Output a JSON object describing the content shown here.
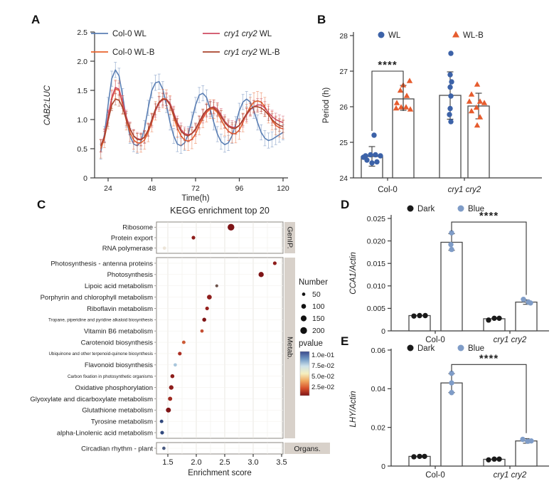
{
  "panel_labels": {
    "a": "A",
    "b": "B",
    "c": "C",
    "d": "D",
    "e": "E"
  },
  "chart_data": [
    {
      "panel": "A",
      "type": "line",
      "ylabel": "CAB2:LUC",
      "xlabel": "Time(h)",
      "ylim": [
        0,
        2.5
      ],
      "ytick_vals": [
        0,
        0.5,
        1.0,
        1.5,
        2.0,
        2.5
      ],
      "ytick_labels": [
        "0",
        "0.5",
        "1.0",
        "1.5",
        "2.0",
        "2.5"
      ],
      "xticks": [
        24,
        48,
        72,
        96,
        120
      ],
      "x_start": 20,
      "x_step": 2,
      "series": [
        {
          "name_italic": "",
          "name_rest": "Col-0 WL",
          "color": "#5b7fb4",
          "err": 0.13,
          "y": [
            0.45,
            0.75,
            1.25,
            1.7,
            1.85,
            1.75,
            1.4,
            1.0,
            0.72,
            0.58,
            0.55,
            0.62,
            0.85,
            1.2,
            1.5,
            1.63,
            1.65,
            1.52,
            1.25,
            0.95,
            0.72,
            0.58,
            0.55,
            0.6,
            0.75,
            1.0,
            1.25,
            1.42,
            1.45,
            1.38,
            1.18,
            0.95,
            0.75,
            0.62,
            0.57,
            0.6,
            0.72,
            0.92,
            1.15,
            1.3,
            1.35,
            1.3,
            1.15,
            0.95,
            0.78,
            0.68,
            0.64,
            0.66,
            0.7,
            0.74,
            0.78
          ]
        },
        {
          "name_italic": "",
          "name_rest": "Col-0 WL-B",
          "color": "#e8622d",
          "err": 0.16,
          "y": [
            0.5,
            0.68,
            1.0,
            1.35,
            1.52,
            1.5,
            1.25,
            0.98,
            0.78,
            0.65,
            0.6,
            0.6,
            0.65,
            0.78,
            0.95,
            1.15,
            1.3,
            1.36,
            1.35,
            1.25,
            1.05,
            0.85,
            0.72,
            0.65,
            0.63,
            0.66,
            0.75,
            0.9,
            1.02,
            1.12,
            1.18,
            1.18,
            1.12,
            1.0,
            0.88,
            0.8,
            0.76,
            0.76,
            0.82,
            0.95,
            1.1,
            1.22,
            1.3,
            1.32,
            1.3,
            1.22,
            1.1,
            0.98,
            0.9,
            0.86,
            0.84
          ]
        },
        {
          "name_italic": "cry1 cry2",
          "name_rest": " WL",
          "color": "#cf4b62",
          "err": 0.11,
          "y": [
            0.55,
            0.72,
            1.05,
            1.38,
            1.55,
            1.52,
            1.3,
            1.05,
            0.85,
            0.72,
            0.67,
            0.66,
            0.7,
            0.82,
            0.98,
            1.15,
            1.28,
            1.34,
            1.35,
            1.28,
            1.12,
            0.95,
            0.83,
            0.76,
            0.74,
            0.76,
            0.82,
            0.95,
            1.05,
            1.15,
            1.2,
            1.22,
            1.18,
            1.08,
            0.97,
            0.9,
            0.87,
            0.86,
            0.9,
            0.98,
            1.08,
            1.17,
            1.22,
            1.25,
            1.25,
            1.2,
            1.12,
            1.05,
            1.0,
            0.97,
            0.95
          ]
        },
        {
          "name_italic": "cry1 cry2",
          "name_rest": " WL-B",
          "color": "#a8432c",
          "err": 0.1,
          "y": [
            0.55,
            0.7,
            0.98,
            1.25,
            1.35,
            1.33,
            1.2,
            1.0,
            0.84,
            0.72,
            0.66,
            0.65,
            0.7,
            0.82,
            1.0,
            1.18,
            1.3,
            1.35,
            1.34,
            1.25,
            1.08,
            0.92,
            0.8,
            0.74,
            0.72,
            0.76,
            0.84,
            0.96,
            1.08,
            1.16,
            1.2,
            1.2,
            1.15,
            1.05,
            0.95,
            0.88,
            0.85,
            0.85,
            0.9,
            1.0,
            1.1,
            1.18,
            1.22,
            1.22,
            1.2,
            1.15,
            1.08,
            1.0,
            0.94,
            0.9,
            0.88
          ]
        }
      ]
    },
    {
      "panel": "B",
      "type": "bar-scatter",
      "ylabel": "Period (h)",
      "ylabel_italic": false,
      "ylim": [
        24,
        28
      ],
      "ytick_vals": [
        24,
        25,
        26,
        27,
        28
      ],
      "ytick_labels": [
        "24",
        "25",
        "26",
        "27",
        "28"
      ],
      "categories": [
        {
          "label": "Col-0",
          "italic": false
        },
        {
          "label": "cry1 cry2",
          "italic": true
        }
      ],
      "legend": [
        {
          "label": "WL",
          "marker": "circle",
          "color": "#3c62a8"
        },
        {
          "label": "WL-B",
          "marker": "triangle",
          "color": "#e65c2e"
        }
      ],
      "bars": [
        {
          "category": "Col-0",
          "series": "WL",
          "mean": 24.6,
          "err_lo": 24.33,
          "err_hi": 24.88,
          "points": [
            [
              3,
              25.2
            ],
            [
              -9,
              24.62
            ],
            [
              -2,
              24.65
            ],
            [
              5,
              24.65
            ],
            [
              12,
              24.62
            ],
            [
              -7,
              24.5
            ],
            [
              0,
              24.42
            ],
            [
              7,
              24.45
            ],
            [
              -12,
              24.58
            ]
          ]
        },
        {
          "category": "Col-0",
          "series": "WL-B",
          "mean": 26.22,
          "err_lo": 25.9,
          "err_hi": 26.6,
          "points": [
            [
              0,
              26.6
            ],
            [
              9,
              26.72
            ],
            [
              -4,
              26.45
            ],
            [
              5,
              26.3
            ],
            [
              -9,
              26.1
            ],
            [
              -3,
              25.98
            ],
            [
              4,
              25.98
            ],
            [
              -10,
              25.95
            ],
            [
              10,
              25.92
            ]
          ]
        },
        {
          "category": "cry1 cry2",
          "series": "WL",
          "mean": 26.32,
          "err_lo": 25.65,
          "err_hi": 26.98,
          "points": [
            [
              1,
              27.5
            ],
            [
              0,
              26.9
            ],
            [
              2,
              26.7
            ],
            [
              0,
              26.55
            ],
            [
              1,
              26.3
            ],
            [
              0,
              25.95
            ],
            [
              -1,
              25.78
            ],
            [
              1,
              25.58
            ]
          ]
        },
        {
          "category": "cry1 cry2",
          "series": "WL-B",
          "mean": 26.02,
          "err_lo": 25.66,
          "err_hi": 26.38,
          "points": [
            [
              -2,
              26.62
            ],
            [
              -10,
              26.34
            ],
            [
              2,
              26.14
            ],
            [
              -13,
              26.14
            ],
            [
              8,
              26.1
            ],
            [
              -3,
              25.97
            ],
            [
              -10,
              25.87
            ],
            [
              2,
              25.7
            ],
            [
              -2,
              25.47
            ]
          ]
        }
      ],
      "significance": {
        "label": "****",
        "from_bar": 0,
        "to_bar": 1,
        "y": 27.0,
        "left_drop_to": 25.32,
        "right_drop_to": 25.88
      }
    },
    {
      "panel": "C",
      "type": "dot",
      "title": "KEGG enrichment top 20",
      "xlabel": "Enrichment score",
      "xlim": [
        1.28,
        3.56
      ],
      "xticks": [
        1.5,
        2.0,
        2.5,
        3.0,
        3.5
      ],
      "xtick_labels": [
        "1.5",
        "2.0",
        "2.5",
        "3.0",
        "3.5"
      ],
      "facets": [
        {
          "label": "GenIP.",
          "items": [
            {
              "label": "Ribosome",
              "score": 2.61,
              "number": 200,
              "color": "#7e1416"
            },
            {
              "label": "Protein export",
              "score": 1.95,
              "number": 60,
              "color": "#8e1e1c"
            },
            {
              "label": "RNA polymerase",
              "score": 1.44,
              "number": 50,
              "color": "#ece4d8"
            }
          ]
        },
        {
          "label": "Metab.",
          "items": [
            {
              "label": "Photosynthesis - antenna proteins",
              "score": 3.38,
              "number": 60,
              "color": "#8e1e1c"
            },
            {
              "label": "Photosynthesis",
              "score": 3.14,
              "number": 120,
              "color": "#7e1416"
            },
            {
              "label": "Lipoic acid metabolism",
              "score": 2.36,
              "number": 40,
              "color": "#6b5048"
            },
            {
              "label": "Porphyrin and chlorophyll metabolism",
              "score": 2.23,
              "number": 100,
              "color": "#8e1e1c"
            },
            {
              "label": "Riboflavin metabolism",
              "score": 2.19,
              "number": 60,
              "color": "#96201e"
            },
            {
              "label": "Tropane, piperidine and pyridine alkaloid biosynthesis",
              "score": 2.14,
              "number": 70,
              "color": "#7e1416",
              "small": true
            },
            {
              "label": "Vitamin B6 metabolism",
              "score": 2.1,
              "number": 50,
              "color": "#c54f33"
            },
            {
              "label": "Carotenoid biosynthesis",
              "score": 1.78,
              "number": 55,
              "color": "#cc5a35"
            },
            {
              "label": "Ubiquinone and other terpenoid-quinone biosynthesis",
              "score": 1.71,
              "number": 60,
              "color": "#ab2d22",
              "small": true
            },
            {
              "label": "Flavonoid biosynthesis",
              "score": 1.63,
              "number": 50,
              "color": "#a9c6dc"
            },
            {
              "label": "Carbon fixation in photosynthetic organisms",
              "score": 1.58,
              "number": 70,
              "color": "#8e1e1c",
              "small": true
            },
            {
              "label": "Oxidative phosphorylation",
              "score": 1.56,
              "number": 90,
              "color": "#8e1e1c"
            },
            {
              "label": "Glyoxylate and dicarboxylate metabolism",
              "score": 1.54,
              "number": 80,
              "color": "#a02a20"
            },
            {
              "label": "Glutathione metabolism",
              "score": 1.51,
              "number": 110,
              "color": "#7e1416"
            },
            {
              "label": "Tyrosine metabolism",
              "score": 1.39,
              "number": 55,
              "color": "#31497e"
            },
            {
              "label": "alpha-Linolenic acid metabolism",
              "score": 1.4,
              "number": 60,
              "color": "#31497e"
            }
          ]
        },
        {
          "label": "Organs.",
          "items": [
            {
              "label": "Circadian rhythm - plant",
              "score": 1.43,
              "number": 50,
              "color": "#4a5a80"
            }
          ]
        }
      ],
      "legend_number": {
        "title": "Number",
        "sizes": [
          50,
          100,
          150,
          200
        ]
      },
      "legend_pvalue": {
        "title": "pvalue",
        "labels": [
          "1.0e-01",
          "7.5e-02",
          "5.0e-02",
          "2.5e-02"
        ],
        "gradient": [
          "#39498c",
          "#6f97c4",
          "#cfe3ea",
          "#f5efc0",
          "#f0a860",
          "#d8512c",
          "#7e1416"
        ]
      }
    },
    {
      "panel": "D",
      "type": "bar-scatter",
      "ylabel": "CCA1/Actin",
      "ylabel_italic": true,
      "ylim": [
        0,
        0.025
      ],
      "ytick_vals": [
        0,
        0.005,
        0.01,
        0.015,
        0.02,
        0.025
      ],
      "ytick_labels": [
        "0",
        "0.005",
        "0.010",
        "0.015",
        "0.020",
        "0.025"
      ],
      "categories": [
        {
          "label": "Col-0",
          "italic": false
        },
        {
          "label": "cry1 cry2",
          "italic": true
        }
      ],
      "legend": [
        {
          "label": "Dark",
          "marker": "circle",
          "color": "#1a1a1a"
        },
        {
          "label": "Blue",
          "marker": "circle",
          "color": "#7f9cc7"
        }
      ],
      "bars": [
        {
          "category": "Col-0",
          "series": "Dark",
          "mean": 0.0034,
          "points": [
            [
              -8,
              0.0033
            ],
            [
              0,
              0.0034
            ],
            [
              8,
              0.0034
            ]
          ]
        },
        {
          "category": "Col-0",
          "series": "Blue",
          "mean": 0.0197,
          "err_lo": 0.0179,
          "err_hi": 0.0216,
          "points": [
            [
              0,
              0.0218
            ],
            [
              -1,
              0.0192
            ],
            [
              0,
              0.0181
            ]
          ]
        },
        {
          "category": "cry1 cry2",
          "series": "Dark",
          "mean": 0.0027,
          "points": [
            [
              -8,
              0.0024
            ],
            [
              0,
              0.0028
            ],
            [
              7,
              0.0028
            ]
          ]
        },
        {
          "category": "cry1 cry2",
          "series": "Blue",
          "mean": 0.0064,
          "err_lo": 0.0059,
          "err_hi": 0.0069,
          "points": [
            [
              -4,
              0.007
            ],
            [
              3,
              0.0064
            ],
            [
              6,
              0.0062
            ]
          ]
        }
      ],
      "significance": {
        "label": "****",
        "from_bar": 1,
        "to_bar": 3,
        "y": 0.0242,
        "left_drop_to": 0.0222,
        "right_drop_to": 0.008
      }
    },
    {
      "panel": "E",
      "type": "bar-scatter",
      "ylabel": "LHY/Actin",
      "ylabel_italic": true,
      "ylim": [
        0,
        0.06
      ],
      "ytick_vals": [
        0,
        0.02,
        0.04,
        0.06
      ],
      "ytick_labels": [
        "0",
        "0.02",
        "0.04",
        "0.06"
      ],
      "categories": [
        {
          "label": "Col-0",
          "italic": false
        },
        {
          "label": "cry1 cry2",
          "italic": true
        }
      ],
      "legend": [
        {
          "label": "Dark",
          "marker": "circle",
          "color": "#1a1a1a"
        },
        {
          "label": "Blue",
          "marker": "circle",
          "color": "#7f9cc7"
        }
      ],
      "bars": [
        {
          "category": "Col-0",
          "series": "Dark",
          "mean": 0.005,
          "points": [
            [
              -8,
              0.0048
            ],
            [
              0,
              0.005
            ],
            [
              7,
              0.005
            ]
          ]
        },
        {
          "category": "Col-0",
          "series": "Blue",
          "mean": 0.043,
          "err_lo": 0.038,
          "err_hi": 0.0478,
          "points": [
            [
              0,
              0.048
            ],
            [
              0,
              0.043
            ],
            [
              0,
              0.038
            ]
          ]
        },
        {
          "category": "cry1 cry2",
          "series": "Dark",
          "mean": 0.0035,
          "points": [
            [
              -8,
              0.0032
            ],
            [
              0,
              0.0036
            ],
            [
              7,
              0.0036
            ]
          ]
        },
        {
          "category": "cry1 cry2",
          "series": "Blue",
          "mean": 0.013,
          "err_lo": 0.0118,
          "err_hi": 0.0142,
          "points": [
            [
              -5,
              0.0138
            ],
            [
              2,
              0.0128
            ],
            [
              7,
              0.013
            ]
          ]
        }
      ],
      "significance": {
        "label": "****",
        "from_bar": 1,
        "to_bar": 3,
        "y": 0.0525,
        "left_drop_to": 0.049,
        "right_drop_to": 0.017
      }
    }
  ]
}
